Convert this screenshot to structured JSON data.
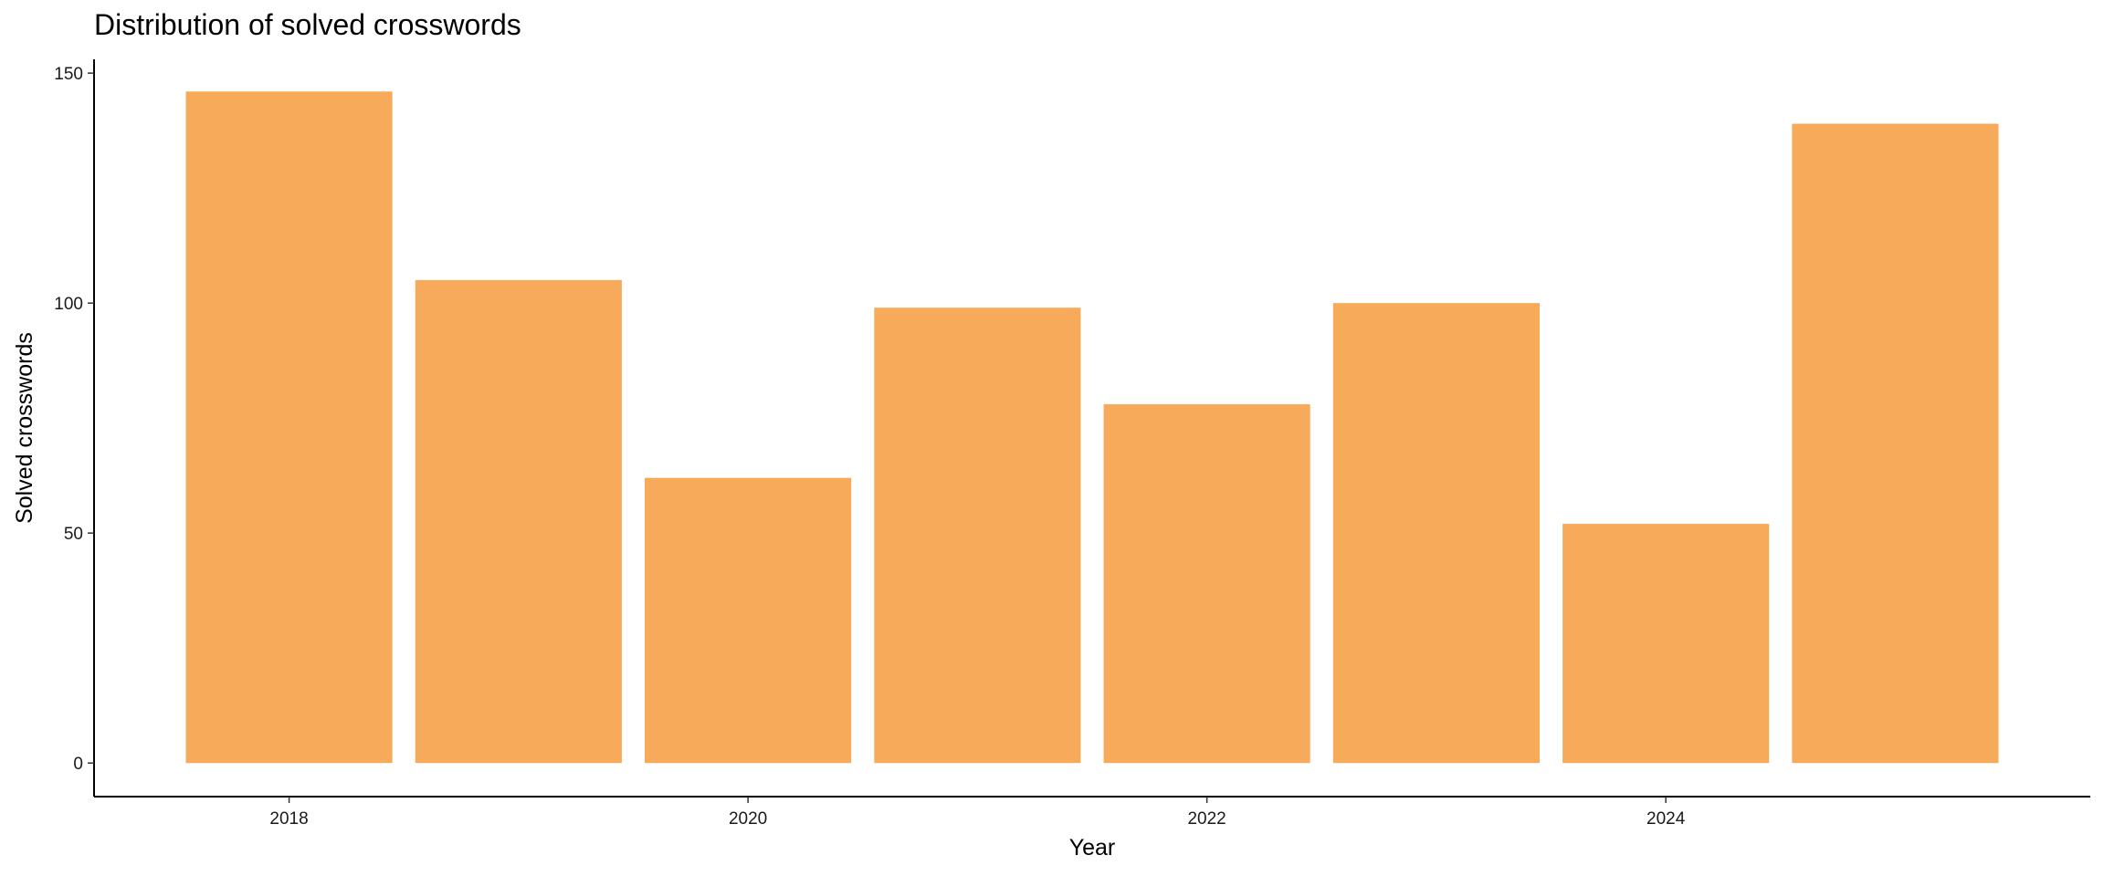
{
  "chart_data": {
    "type": "bar",
    "title": "Distribution of solved crosswords",
    "x_label": "Year",
    "y_label": "Solved crosswords",
    "x": [
      2018,
      2019,
      2020,
      2021,
      2022,
      2023,
      2024,
      2025
    ],
    "values": [
      146,
      105,
      62,
      99,
      78,
      100,
      52,
      139
    ],
    "color": "#f6aa5a",
    "xlim": [
      2017.15,
      2025.85
    ],
    "xticks": [
      2018,
      2020,
      2022,
      2024
    ],
    "ylim": [
      -7.3,
      153
    ],
    "yticks": [
      0,
      50,
      100,
      150
    ]
  }
}
